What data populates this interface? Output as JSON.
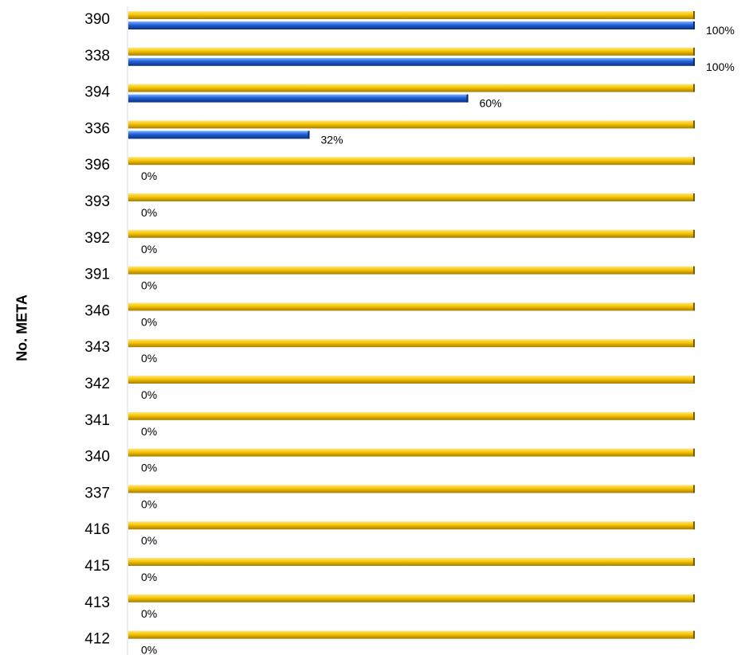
{
  "chart_data": {
    "type": "bar",
    "orientation": "horizontal",
    "ylabel": "No. META",
    "xlim": [
      0,
      100
    ],
    "value_format": "percent",
    "grid": false,
    "categories": [
      "390",
      "338",
      "394",
      "336",
      "396",
      "393",
      "392",
      "391",
      "346",
      "343",
      "342",
      "341",
      "340",
      "337",
      "416",
      "415",
      "413",
      "412"
    ],
    "series": [
      {
        "color": "#F5C400",
        "values": [
          100,
          100,
          100,
          100,
          100,
          100,
          100,
          100,
          100,
          100,
          100,
          100,
          100,
          100,
          100,
          100,
          100,
          100
        ]
      },
      {
        "color": "#1F5FD6",
        "values": [
          100,
          100,
          60,
          32,
          0,
          0,
          0,
          0,
          0,
          0,
          0,
          0,
          0,
          0,
          0,
          0,
          0,
          0
        ]
      }
    ],
    "data_labels": [
      "100%",
      "100%",
      "60%",
      "32%",
      "0%",
      "0%",
      "0%",
      "0%",
      "0%",
      "0%",
      "0%",
      "0%",
      "0%",
      "0%",
      "0%",
      "0%",
      "0%",
      "0%"
    ]
  }
}
